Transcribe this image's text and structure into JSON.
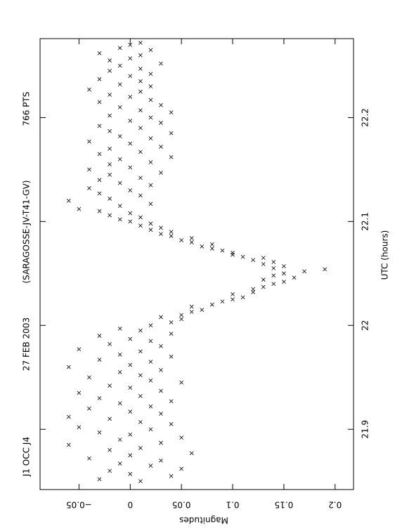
{
  "chart_data": {
    "type": "scatter",
    "annotations": [
      "J1 OCC J4",
      "27 FEB 2003",
      "(SARAGOSSE-JV-T41-GV)",
      "766 PTS"
    ],
    "x_label": "UTC (hours)",
    "y_label": "Magnitudes",
    "xlim": [
      21.842,
      22.276
    ],
    "xticks": [
      21.9,
      22,
      22.1,
      22.2
    ],
    "ylim": [
      -0.088,
      0.218
    ],
    "y_inverted": true,
    "yticks": [
      {
        "value": -0.05,
        "label": "−0.05"
      },
      0,
      0.05,
      0.1,
      0.15,
      0.2
    ],
    "series": [
      {
        "name": "points",
        "color": "#000000",
        "x": [
          21.85,
          21.852,
          21.855,
          21.857,
          21.86,
          21.862,
          21.865,
          21.867,
          21.87,
          21.872,
          21.875,
          21.877,
          21.88,
          21.882,
          21.885,
          21.887,
          21.89,
          21.892,
          21.895,
          21.897,
          21.9,
          21.902,
          21.905,
          21.907,
          21.91,
          21.912,
          21.915,
          21.917,
          21.92,
          21.922,
          21.925,
          21.927,
          21.93,
          21.932,
          21.935,
          21.937,
          21.94,
          21.942,
          21.945,
          21.947,
          21.95,
          21.952,
          21.955,
          21.957,
          21.96,
          21.962,
          21.965,
          21.967,
          21.97,
          21.972,
          21.975,
          21.977,
          21.98,
          21.982,
          21.985,
          21.987,
          21.99,
          21.992,
          21.995,
          21.997,
          22.0,
          22.003,
          22.006,
          22.008,
          22.01,
          22.013,
          22.015,
          22.018,
          22.02,
          22.023,
          22.025,
          22.027,
          22.03,
          22.032,
          22.035,
          22.037,
          22.04,
          22.042,
          22.044,
          22.046,
          22.048,
          22.05,
          22.052,
          22.054,
          22.055,
          22.057,
          22.059,
          22.061,
          22.063,
          22.065,
          22.066,
          22.068,
          22.07,
          22.072,
          22.074,
          22.076,
          22.078,
          22.08,
          22.082,
          22.084,
          22.086,
          22.088,
          22.09,
          22.092,
          22.094,
          22.096,
          22.098,
          22.1,
          22.102,
          22.104,
          22.106,
          22.108,
          22.11,
          22.112,
          22.115,
          22.117,
          22.12,
          22.122,
          22.125,
          22.127,
          22.13,
          22.132,
          22.135,
          22.137,
          22.14,
          22.142,
          22.145,
          22.147,
          22.15,
          22.152,
          22.155,
          22.157,
          22.16,
          22.162,
          22.165,
          22.167,
          22.17,
          22.172,
          22.175,
          22.177,
          22.18,
          22.182,
          22.185,
          22.187,
          22.19,
          22.192,
          22.195,
          22.197,
          22.2,
          22.202,
          22.205,
          22.207,
          22.21,
          22.212,
          22.215,
          22.217,
          22.22,
          22.222,
          22.225,
          22.227,
          22.23,
          22.232,
          22.235,
          22.237,
          22.24,
          22.242,
          22.245,
          22.247,
          22.25,
          22.252,
          22.255,
          22.257,
          22.26,
          22.262,
          22.265,
          22.267,
          22.27,
          22.272
        ],
        "values": [
          0.01,
          -0.03,
          0.04,
          0.0,
          -0.02,
          0.05,
          0.02,
          -0.01,
          0.03,
          -0.04,
          0.0,
          0.06,
          -0.02,
          0.01,
          -0.06,
          0.03,
          -0.01,
          0.05,
          0.0,
          -0.03,
          0.02,
          -0.05,
          0.04,
          0.01,
          -0.02,
          -0.06,
          0.03,
          0.0,
          -0.04,
          0.02,
          -0.01,
          0.04,
          -0.03,
          0.01,
          -0.05,
          0.03,
          0.0,
          -0.02,
          0.05,
          0.02,
          -0.04,
          0.01,
          -0.01,
          0.03,
          -0.06,
          0.0,
          0.02,
          -0.03,
          0.04,
          -0.01,
          0.01,
          -0.05,
          0.03,
          -0.02,
          0.02,
          0.0,
          -0.03,
          0.04,
          0.01,
          -0.01,
          0.02,
          0.04,
          0.05,
          0.03,
          0.05,
          0.06,
          0.07,
          0.06,
          0.08,
          0.09,
          0.1,
          0.11,
          0.1,
          0.12,
          0.12,
          0.13,
          0.14,
          0.15,
          0.13,
          0.16,
          0.14,
          0.15,
          0.17,
          0.19,
          0.14,
          0.15,
          0.13,
          0.14,
          0.12,
          0.13,
          0.11,
          0.1,
          0.1,
          0.09,
          0.08,
          0.07,
          0.08,
          0.06,
          0.05,
          0.06,
          0.04,
          0.03,
          0.04,
          0.02,
          0.03,
          0.01,
          0.02,
          0.0,
          -0.01,
          0.01,
          -0.02,
          0.0,
          -0.03,
          -0.05,
          -0.01,
          0.02,
          -0.06,
          -0.02,
          0.01,
          -0.03,
          0.0,
          -0.04,
          0.02,
          -0.01,
          -0.03,
          0.01,
          -0.02,
          0.03,
          -0.04,
          0.0,
          -0.02,
          0.02,
          -0.01,
          0.04,
          -0.03,
          0.01,
          -0.02,
          0.03,
          0.0,
          -0.04,
          0.02,
          -0.01,
          0.04,
          -0.02,
          0.01,
          -0.03,
          0.03,
          0.0,
          0.02,
          -0.02,
          0.04,
          0.01,
          -0.01,
          0.03,
          -0.03,
          0.02,
          0.0,
          -0.02,
          0.01,
          -0.04,
          0.02,
          -0.01,
          0.01,
          -0.03,
          0.0,
          0.02,
          -0.02,
          0.01,
          -0.01,
          0.03,
          -0.02,
          0.0,
          0.01,
          -0.03,
          0.02,
          -0.01,
          0.0,
          0.01
        ]
      }
    ]
  }
}
